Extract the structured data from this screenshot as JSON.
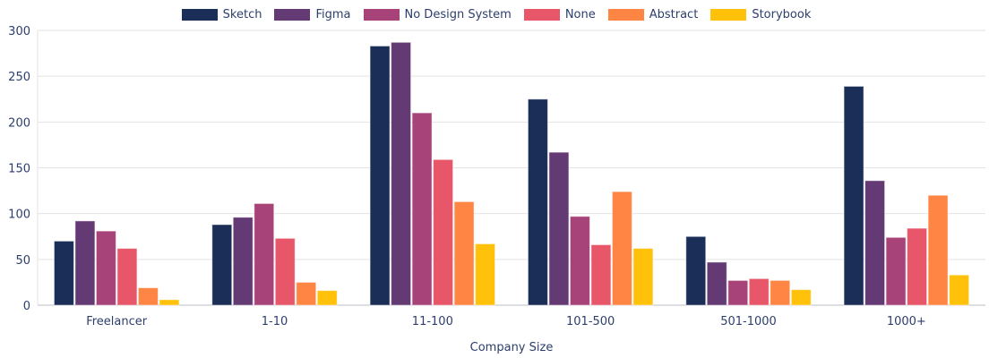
{
  "chart_data": {
    "type": "bar",
    "title": "",
    "xlabel": "Company Size",
    "ylabel": "",
    "ylim": [
      0,
      300
    ],
    "yticks": [
      0,
      50,
      100,
      150,
      200,
      250,
      300
    ],
    "grid": true,
    "legend_position": "top",
    "categories": [
      "Freelancer",
      "1-10",
      "11-100",
      "101-500",
      "501-1000",
      "1000+"
    ],
    "series": [
      {
        "name": "Sketch",
        "color": "#1a2e57",
        "values": [
          70,
          88,
          283,
          225,
          75,
          239
        ]
      },
      {
        "name": "Figma",
        "color": "#633a74",
        "values": [
          92,
          96,
          287,
          167,
          47,
          136
        ]
      },
      {
        "name": "No Design System",
        "color": "#a8437a",
        "values": [
          81,
          111,
          210,
          97,
          27,
          74
        ]
      },
      {
        "name": "None",
        "color": "#e8566a",
        "values": [
          62,
          73,
          159,
          66,
          29,
          84
        ]
      },
      {
        "name": "Abstract",
        "color": "#ff8544",
        "values": [
          19,
          25,
          113,
          124,
          27,
          120
        ]
      },
      {
        "name": "Storybook",
        "color": "#ffc10a",
        "values": [
          6,
          16,
          67,
          62,
          17,
          33
        ]
      }
    ]
  }
}
